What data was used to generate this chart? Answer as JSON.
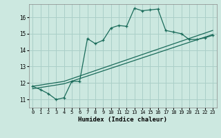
{
  "background_color": "#cce8e0",
  "grid_color": "#aacfc8",
  "line_color": "#1a6b5a",
  "xlabel": "Humidex (Indice chaleur)",
  "xlim": [
    -0.5,
    23.5
  ],
  "ylim": [
    10.5,
    16.8
  ],
  "xticks": [
    0,
    1,
    2,
    3,
    4,
    5,
    6,
    7,
    8,
    9,
    10,
    11,
    12,
    13,
    14,
    15,
    16,
    17,
    18,
    19,
    20,
    21,
    22,
    23
  ],
  "yticks": [
    11,
    12,
    13,
    14,
    15,
    16
  ],
  "curve1_x": [
    0,
    1,
    2,
    3,
    4,
    5,
    6,
    7,
    8,
    9,
    10,
    11,
    12,
    13,
    14,
    15,
    16,
    17,
    18,
    19,
    20,
    21,
    22,
    23
  ],
  "curve1_y": [
    11.8,
    11.6,
    11.35,
    11.0,
    11.1,
    12.1,
    12.1,
    14.7,
    14.4,
    14.6,
    15.35,
    15.5,
    15.45,
    16.55,
    16.4,
    16.45,
    16.5,
    15.2,
    15.1,
    15.0,
    14.65,
    14.65,
    14.75,
    14.9
  ],
  "curve2_x": [
    0,
    4,
    23
  ],
  "curve2_y": [
    11.8,
    12.1,
    15.2
  ],
  "curve3_x": [
    0,
    4,
    23
  ],
  "curve3_y": [
    11.65,
    11.95,
    14.95
  ]
}
